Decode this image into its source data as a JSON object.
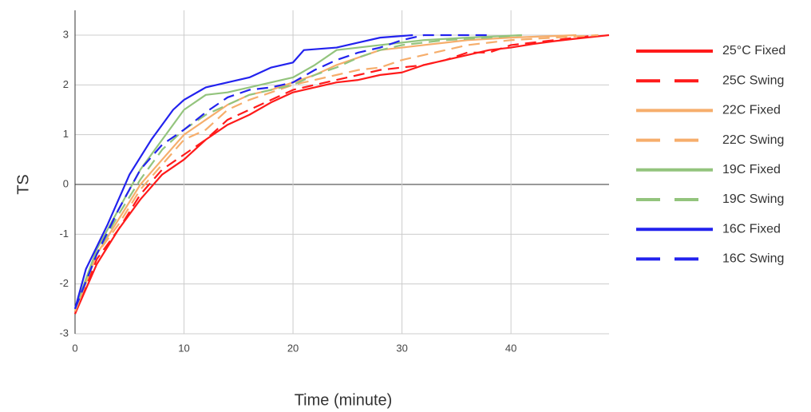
{
  "chart_data": {
    "type": "line",
    "x_label": "Time (minute)",
    "y_label": "TS",
    "xlim": [
      0,
      49
    ],
    "ylim": [
      -3,
      3.5
    ],
    "xticks": [
      0,
      10,
      20,
      30,
      40
    ],
    "yticks": [
      -3,
      -2,
      -1,
      0,
      1,
      2,
      3
    ],
    "grid": true,
    "legend": "right",
    "series": [
      {
        "name": "25°C Fixed",
        "color": "#ff1a1a",
        "dashed": false,
        "x": [
          0,
          2,
          4,
          6,
          8,
          10,
          12,
          14,
          16,
          18,
          20,
          22,
          24,
          26,
          28,
          30,
          32,
          34,
          36,
          38,
          40,
          42,
          44,
          46,
          49
        ],
        "values": [
          -2.6,
          -1.6,
          -0.9,
          -0.3,
          0.2,
          0.5,
          0.9,
          1.2,
          1.4,
          1.65,
          1.85,
          1.95,
          2.05,
          2.1,
          2.2,
          2.25,
          2.4,
          2.5,
          2.6,
          2.7,
          2.75,
          2.82,
          2.88,
          2.93,
          3
        ]
      },
      {
        "name": "25C Swing",
        "color": "#ff1a1a",
        "dashed": true,
        "x": [
          0,
          2,
          4,
          6,
          8,
          10,
          12,
          14,
          16,
          18,
          20,
          22,
          24,
          26,
          28,
          30,
          32,
          34,
          36,
          38,
          40,
          44,
          48
        ],
        "values": [
          -2.6,
          -1.5,
          -0.9,
          -0.2,
          0.3,
          0.6,
          0.9,
          1.3,
          1.5,
          1.7,
          1.9,
          2.0,
          2.1,
          2.2,
          2.3,
          2.35,
          2.4,
          2.5,
          2.65,
          2.65,
          2.8,
          2.9,
          3
        ]
      },
      {
        "name": "22C Fixed",
        "color": "#f6ae6c",
        "dashed": false,
        "x": [
          0,
          2,
          4,
          6,
          8,
          10,
          12,
          14,
          16,
          18,
          20,
          22,
          24,
          26,
          28,
          30,
          32,
          34,
          36,
          40,
          46
        ],
        "values": [
          -2.55,
          -1.4,
          -0.7,
          0,
          0.5,
          1.0,
          1.3,
          1.6,
          1.8,
          1.9,
          2.05,
          2.2,
          2.4,
          2.55,
          2.7,
          2.75,
          2.8,
          2.85,
          2.9,
          2.95,
          3
        ]
      },
      {
        "name": "22C Swing",
        "color": "#f6ae6c",
        "dashed": true,
        "x": [
          0,
          2,
          4,
          6,
          8,
          10,
          12,
          14,
          16,
          18,
          20,
          22,
          24,
          26,
          28,
          30,
          32,
          34,
          36,
          38,
          40,
          44,
          48
        ],
        "values": [
          -2.55,
          -1.4,
          -0.8,
          -0.1,
          0.4,
          0.9,
          1.1,
          1.5,
          1.7,
          1.85,
          2.0,
          2.1,
          2.2,
          2.3,
          2.35,
          2.5,
          2.6,
          2.7,
          2.8,
          2.85,
          2.9,
          2.95,
          3
        ]
      },
      {
        "name": "19C Fixed",
        "color": "#93c47d",
        "dashed": false,
        "x": [
          0,
          2,
          4,
          6,
          8,
          10,
          12,
          14,
          16,
          18,
          20,
          22,
          24,
          26,
          28,
          30,
          32,
          36,
          41
        ],
        "values": [
          -2.5,
          -1.3,
          -0.5,
          0.3,
          0.9,
          1.5,
          1.8,
          1.85,
          1.95,
          2.05,
          2.15,
          2.4,
          2.7,
          2.75,
          2.8,
          2.85,
          2.9,
          2.95,
          3
        ]
      },
      {
        "name": "19C Swing",
        "color": "#93c47d",
        "dashed": true,
        "x": [
          0,
          2,
          4,
          6,
          8,
          10,
          12,
          14,
          16,
          18,
          20,
          22,
          24,
          26,
          28,
          30,
          32,
          34,
          38,
          41
        ],
        "values": [
          -2.5,
          -1.4,
          -0.6,
          0.1,
          0.7,
          1.1,
          1.4,
          1.6,
          1.8,
          1.9,
          2.0,
          2.2,
          2.35,
          2.55,
          2.7,
          2.8,
          2.85,
          2.9,
          2.95,
          3
        ]
      },
      {
        "name": "16C Fixed",
        "color": "#2222ee",
        "dashed": false,
        "x": [
          0,
          1,
          3,
          5,
          7,
          9,
          10,
          12,
          14,
          16,
          18,
          20,
          21,
          24,
          26,
          28,
          31
        ],
        "values": [
          -2.5,
          -1.7,
          -0.8,
          0.2,
          0.9,
          1.5,
          1.7,
          1.95,
          2.05,
          2.15,
          2.35,
          2.45,
          2.7,
          2.75,
          2.85,
          2.95,
          3
        ]
      },
      {
        "name": "16C Swing",
        "color": "#2222ee",
        "dashed": true,
        "x": [
          0,
          2,
          4,
          6,
          8,
          10,
          12,
          14,
          16,
          18,
          20,
          22,
          24,
          26,
          28,
          30,
          32,
          38
        ],
        "values": [
          -2.5,
          -1.4,
          -0.5,
          0.3,
          0.8,
          1.1,
          1.45,
          1.75,
          1.9,
          1.95,
          2.05,
          2.3,
          2.5,
          2.65,
          2.75,
          2.9,
          3.0,
          3
        ]
      }
    ]
  }
}
